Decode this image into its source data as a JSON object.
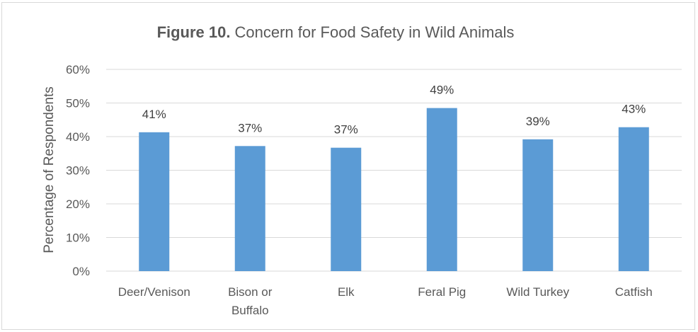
{
  "chart_data": {
    "type": "bar",
    "title_bold": "Figure 10.",
    "title_rest": "Concern for Food Safety in Wild Animals",
    "ylabel": "Percentage of Respondents",
    "xlabel": "",
    "categories": [
      [
        "Deer/Venison"
      ],
      [
        "Bison or",
        "Buffalo"
      ],
      [
        "Elk"
      ],
      [
        "Feral Pig"
      ],
      [
        "Wild Turkey"
      ],
      [
        "Catfish"
      ]
    ],
    "values": [
      41.3,
      37.2,
      36.7,
      48.5,
      39.2,
      42.8
    ],
    "data_labels": [
      "41%",
      "37%",
      "37%",
      "49%",
      "39%",
      "43%"
    ],
    "ylim": [
      0,
      60
    ],
    "yticks": [
      0,
      10,
      20,
      30,
      40,
      50,
      60
    ],
    "ytick_labels": [
      "0%",
      "10%",
      "20%",
      "30%",
      "40%",
      "50%",
      "60%"
    ],
    "grid": true,
    "legend": "none",
    "bar_color": "#5b9bd5",
    "grid_color": "#d9d9d9"
  }
}
